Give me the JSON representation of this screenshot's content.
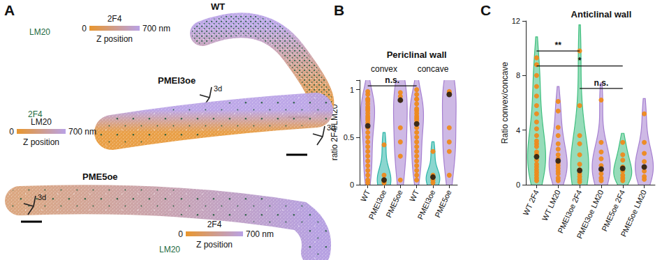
{
  "panel_labels": [
    "A",
    "B",
    "C"
  ],
  "panel_a": {
    "samples": [
      {
        "name": "WT",
        "dots_label": "LM20",
        "colorbar_label": "2F4",
        "colorbar_title": "Z position",
        "colorbar_ticks": [
          {
            "value": 0,
            "label": "0"
          },
          {
            "value": 700,
            "label": "700 nm"
          }
        ],
        "view_label": "3d"
      },
      {
        "name": "PMEI3oe",
        "dots_label": "2F4",
        "colorbar_label": "LM20",
        "colorbar_title": "Z position",
        "colorbar_ticks": [
          {
            "value": 0,
            "label": "0"
          },
          {
            "value": 700,
            "label": "700 nm"
          }
        ],
        "view_label": "3d"
      },
      {
        "name": "PME5oe",
        "dots_label": "LM20",
        "colorbar_label": "2F4",
        "colorbar_title": "Z position",
        "colorbar_ticks": [
          {
            "value": 0,
            "label": "0"
          },
          {
            "value": 700,
            "label": "700 nm"
          }
        ],
        "view_label": "3d"
      }
    ]
  },
  "chart_data": [
    {
      "type": "violin",
      "title": "Periclinal wall",
      "ylabel": "ratio 2F4/LM20",
      "categories": [
        "WT",
        "PMEI3oe",
        "PME5oe",
        "WT",
        "PMEI3oe",
        "PME5oe"
      ],
      "groups": [
        {
          "values": [
            0.98,
            0.95,
            0.9,
            0.88,
            0.85,
            0.82,
            0.8,
            0.75,
            0.72,
            0.7,
            0.68,
            0.65,
            0.6,
            0.55,
            0.5,
            0.45,
            0.4,
            0.35,
            0.3,
            0.25,
            0.2,
            0.15,
            0.1,
            0.05,
            0.02,
            0.9,
            0.78
          ],
          "median": 0.62,
          "color": "#a57fd0"
        },
        {
          "values": [
            0.42,
            0.05,
            0.03,
            0.02,
            0.1
          ],
          "median": 0.05,
          "color": "#2bb5a8"
        },
        {
          "values": [
            0.97,
            0.93,
            0.89,
            0.6,
            0.45,
            0.3,
            0.05
          ],
          "median": 0.89,
          "color": "#a57fd0"
        },
        {
          "values": [
            1.0,
            0.95,
            0.9,
            0.85,
            0.8,
            0.78,
            0.75,
            0.7,
            0.68,
            0.65,
            0.6,
            0.55,
            0.5,
            0.45,
            0.4,
            0.35,
            0.3,
            0.25,
            0.2,
            0.15,
            0.1,
            0.05,
            0.9,
            0.72
          ],
          "median": 0.64,
          "color": "#a57fd0"
        },
        {
          "values": [
            0.35,
            0.1,
            0.08,
            0.05,
            0.02
          ],
          "median": 0.08,
          "color": "#2bb5a8"
        },
        {
          "values": [
            0.98,
            0.97,
            0.95,
            0.6,
            0.45,
            0.35,
            0.1
          ],
          "median": 0.95,
          "color": "#a57fd0"
        }
      ],
      "point_color": "#ee8a1c",
      "median_color": "#111111",
      "ylim": [
        0,
        1.1
      ],
      "yticks": [
        0,
        0.5,
        1
      ],
      "annotations": [
        {
          "text": "convex",
          "x": 1,
          "y": 1.22
        },
        {
          "text": "concave",
          "x": 4,
          "y": 1.22
        }
      ],
      "brackets": [
        {
          "text": "n.s.",
          "from": 0,
          "to": 3,
          "y": 1.04
        }
      ]
    },
    {
      "type": "violin",
      "title": "Anticlinal wall",
      "ylabel": "Ratio convex/concave",
      "categories": [
        "WT 2F4",
        "WT LM20",
        "PMEI3oe 2F4",
        "PMEI3oe LM20",
        "PME5oe 2F4",
        "PME5oe LM20"
      ],
      "groups": [
        {
          "values": [
            9.3,
            8.8,
            8,
            7.2,
            6.5,
            5.8,
            5.2,
            4.6,
            4.1,
            3.6,
            3.2,
            2.8,
            2.4,
            2.1,
            1.8,
            1.5,
            1.3,
            1.1,
            0.9,
            0.7,
            0.5,
            0.3,
            2.2,
            3
          ],
          "median": 2.05,
          "color": "#3fbf7f"
        },
        {
          "values": [
            6.1,
            5.4,
            4.2,
            3.6,
            3,
            2.6,
            2.2,
            1.9,
            1.6,
            1.4,
            1.2,
            1,
            0.8,
            0.5,
            0.3
          ],
          "median": 1.75,
          "color": "#a57fd0"
        },
        {
          "values": [
            9.8,
            5.8,
            3.6,
            3,
            2.2,
            1.5,
            1.1,
            0.8,
            0.6,
            0.4,
            0.2
          ],
          "median": 1.05,
          "color": "#3fbf7f"
        },
        {
          "values": [
            6.2,
            3.1,
            2.4,
            1.9,
            1.4,
            1.1,
            0.8,
            0.5,
            0.3
          ],
          "median": 1.15,
          "color": "#a57fd0"
        },
        {
          "values": [
            3.1,
            2.2,
            1.8,
            1.3,
            1,
            0.7,
            0.5,
            0.3
          ],
          "median": 1.2,
          "color": "#3fbf7f"
        },
        {
          "values": [
            5.2,
            3.1,
            2.3,
            1.7,
            1.3,
            1,
            0.6,
            0.4
          ],
          "median": 1.3,
          "color": "#a57fd0"
        }
      ],
      "point_color": "#ee8a1c",
      "median_color": "#111111",
      "ylim": [
        0,
        12
      ],
      "yticks": [
        0,
        4,
        8,
        12
      ],
      "brackets": [
        {
          "text": "**",
          "from": 0,
          "to": 2,
          "y": 9.8
        },
        {
          "text": "*",
          "from": 0,
          "to": 4,
          "y": 8.7
        },
        {
          "text": "n.s.",
          "from": 2,
          "to": 4,
          "y": 7.05
        }
      ]
    }
  ]
}
